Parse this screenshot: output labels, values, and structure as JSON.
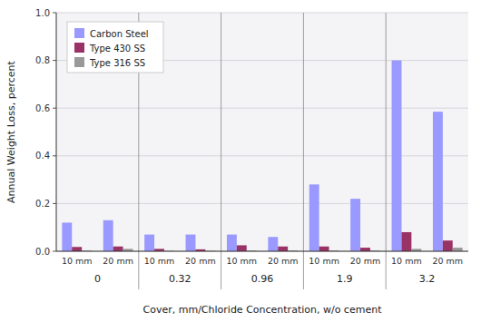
{
  "chart_data": {
    "type": "bar",
    "ylabel": "Annual Weight Loss, percent",
    "xlabel": "Cover, mm/Chloride Concentration, w/o cement",
    "categories": [
      "10 mm",
      "20 mm",
      "10 mm",
      "20 mm",
      "10 mm",
      "20 mm",
      "10 mm",
      "20 mm",
      "10 mm",
      "20 mm"
    ],
    "category_groups": [
      "0",
      "0.32",
      "0.96",
      "1.9",
      "3.2"
    ],
    "ylim": [
      0.0,
      1.0
    ],
    "yticks": [
      {
        "value": 0.0,
        "label": "0.0"
      },
      0.2,
      0.4,
      0.6,
      0.8,
      {
        "value": 1.0,
        "label": "1.0"
      }
    ],
    "grid": true,
    "legend": "upper left",
    "series": [
      {
        "name": "Carbon Steel",
        "color": "#9999ff",
        "values": [
          0.12,
          0.13,
          0.07,
          0.07,
          0.07,
          0.06,
          0.28,
          0.22,
          0.8,
          0.585
        ]
      },
      {
        "name": "Type 430 SS",
        "color": "#993366",
        "values": [
          0.018,
          0.02,
          0.01,
          0.008,
          0.025,
          0.02,
          0.02,
          0.015,
          0.08,
          0.045
        ]
      },
      {
        "name": "Type 316 SS",
        "color": "#999999",
        "values": [
          0.003,
          0.01,
          0.002,
          0.002,
          0.003,
          0.003,
          0.003,
          0.003,
          0.01,
          0.015
        ]
      }
    ]
  }
}
